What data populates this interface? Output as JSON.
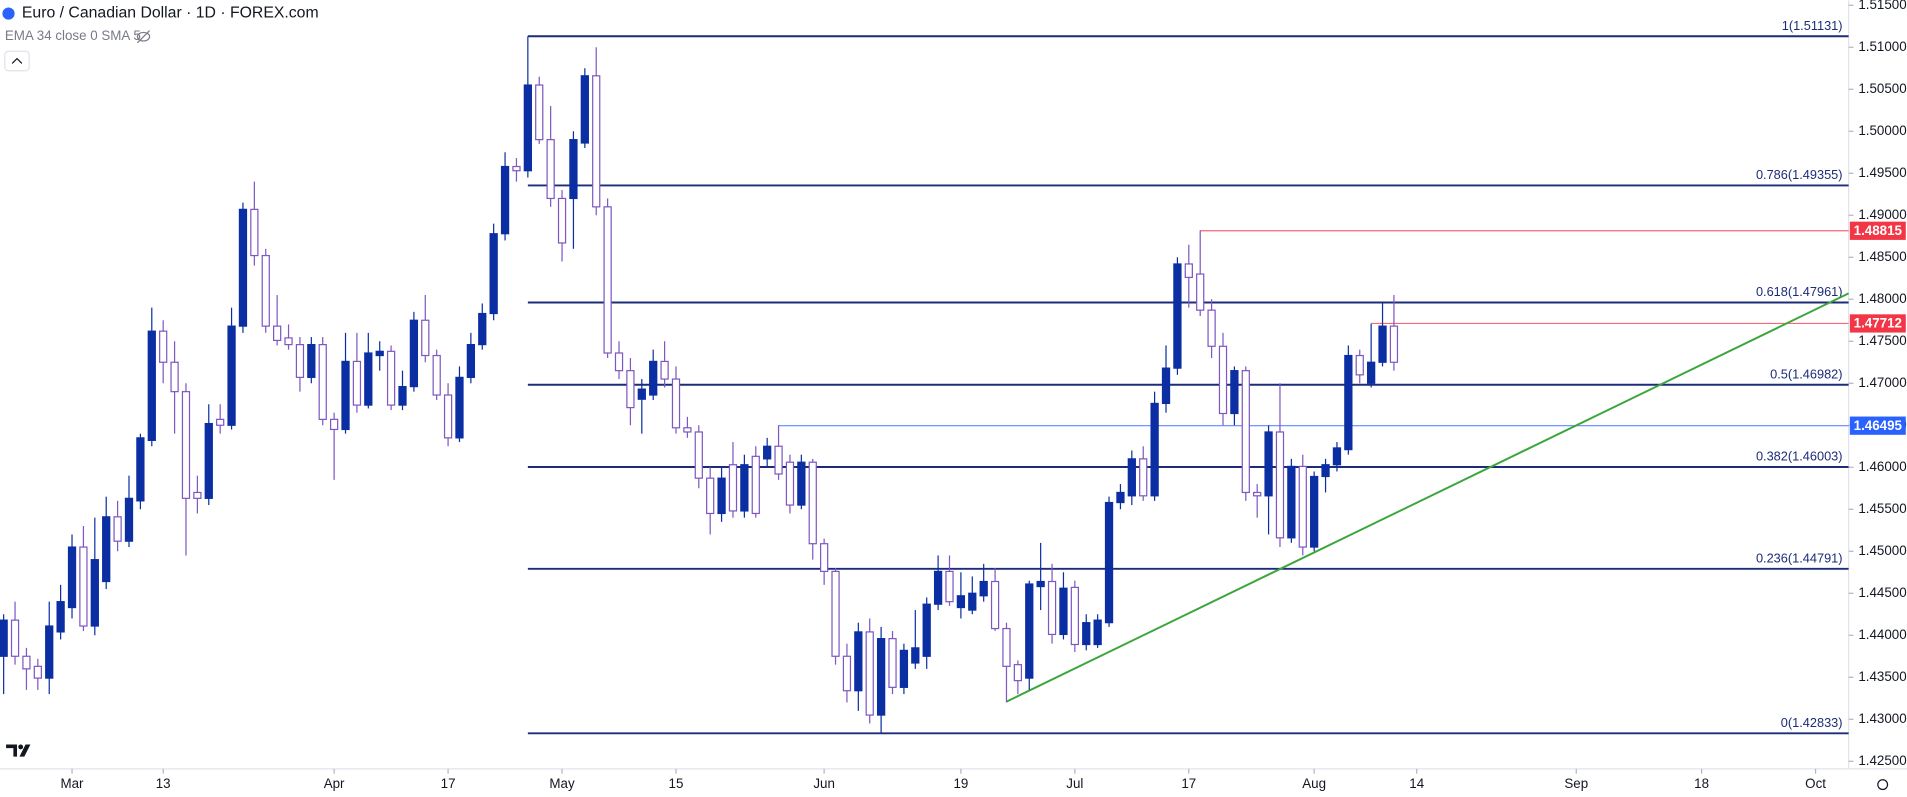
{
  "chart_data": {
    "type": "candlestick",
    "title": "Euro / Canadian Dollar · 1D · FOREX.com",
    "subtitle": "EMA 34 close 0 SMA 5",
    "up_color": "#0b2fa3",
    "down_color": "#ffffff",
    "down_border": "#7e57c2",
    "xlim": [
      -0.32,
      161.9
    ],
    "ylim": [
      1.4241,
      1.5156
    ],
    "xticks": [
      {
        "value": 6,
        "label": "Mar"
      },
      {
        "value": 14,
        "label": "13"
      },
      {
        "value": 29,
        "label": "Apr"
      },
      {
        "value": 39,
        "label": "17"
      },
      {
        "value": 49,
        "label": "May"
      },
      {
        "value": 59,
        "label": "15"
      },
      {
        "value": 72,
        "label": "Jun"
      },
      {
        "value": 84,
        "label": "19"
      },
      {
        "value": 94,
        "label": "Jul"
      },
      {
        "value": 104,
        "label": "17"
      },
      {
        "value": 115,
        "label": "Aug"
      },
      {
        "value": 124,
        "label": "14"
      },
      {
        "value": 138,
        "label": "Sep"
      },
      {
        "value": 149,
        "label": "18"
      },
      {
        "value": 159,
        "label": "Oct"
      }
    ],
    "yticks": [
      {
        "value": 1.425,
        "label": "1.42500"
      },
      {
        "value": 1.43,
        "label": "1.43000"
      },
      {
        "value": 1.435,
        "label": "1.43500"
      },
      {
        "value": 1.44,
        "label": "1.44000"
      },
      {
        "value": 1.445,
        "label": "1.44500"
      },
      {
        "value": 1.45,
        "label": "1.45000"
      },
      {
        "value": 1.455,
        "label": "1.45500"
      },
      {
        "value": 1.46,
        "label": "1.46000"
      },
      {
        "value": 1.465,
        "label": "1.46500"
      },
      {
        "value": 1.47,
        "label": "1.47000"
      },
      {
        "value": 1.475,
        "label": "1.47500"
      },
      {
        "value": 1.48,
        "label": "1.48000"
      },
      {
        "value": 1.485,
        "label": "1.48500"
      },
      {
        "value": 1.49,
        "label": "1.49000"
      },
      {
        "value": 1.495,
        "label": "1.49500"
      },
      {
        "value": 1.5,
        "label": "1.50000"
      },
      {
        "value": 1.505,
        "label": "1.50500"
      },
      {
        "value": 1.51,
        "label": "1.51000"
      },
      {
        "value": 1.515,
        "label": "1.51500"
      }
    ],
    "candles": [
      [
        1.4375,
        1.4425,
        1.433,
        1.4418
      ],
      [
        1.4418,
        1.444,
        1.4365,
        1.4375
      ],
      [
        1.4375,
        1.4385,
        1.4335,
        1.436
      ],
      [
        1.4363,
        1.4372,
        1.4335,
        1.4349
      ],
      [
        1.4349,
        1.444,
        1.433,
        1.4411
      ],
      [
        1.4404,
        1.446,
        1.4395,
        1.444
      ],
      [
        1.4433,
        1.452,
        1.442,
        1.4505
      ],
      [
        1.4505,
        1.453,
        1.4405,
        1.4411
      ],
      [
        1.4411,
        1.454,
        1.44,
        1.449
      ],
      [
        1.4464,
        1.4565,
        1.4455,
        1.4541
      ],
      [
        1.4541,
        1.456,
        1.45,
        1.4512
      ],
      [
        1.4512,
        1.459,
        1.4505,
        1.4563
      ],
      [
        1.456,
        1.464,
        1.455,
        1.4635
      ],
      [
        1.4632,
        1.479,
        1.4625,
        1.4762
      ],
      [
        1.4762,
        1.4775,
        1.47,
        1.4725
      ],
      [
        1.4725,
        1.475,
        1.464,
        1.469
      ],
      [
        1.469,
        1.47,
        1.4495,
        1.4563
      ],
      [
        1.457,
        1.459,
        1.4545,
        1.4563
      ],
      [
        1.4563,
        1.4675,
        1.4555,
        1.4652
      ],
      [
        1.4657,
        1.4675,
        1.464,
        1.465
      ],
      [
        1.465,
        1.479,
        1.4645,
        1.4768
      ],
      [
        1.4768,
        1.4915,
        1.476,
        1.4907
      ],
      [
        1.4907,
        1.494,
        1.484,
        1.4852
      ],
      [
        1.4852,
        1.486,
        1.476,
        1.4768
      ],
      [
        1.4768,
        1.4805,
        1.4745,
        1.4751
      ],
      [
        1.4754,
        1.477,
        1.474,
        1.4746
      ],
      [
        1.4746,
        1.4755,
        1.469,
        1.4707
      ],
      [
        1.4707,
        1.4755,
        1.47,
        1.4746
      ],
      [
        1.4746,
        1.4755,
        1.465,
        1.4657
      ],
      [
        1.4657,
        1.4665,
        1.4585,
        1.4645
      ],
      [
        1.4645,
        1.476,
        1.464,
        1.4726
      ],
      [
        1.4726,
        1.476,
        1.4665,
        1.4674
      ],
      [
        1.4674,
        1.476,
        1.467,
        1.4736
      ],
      [
        1.4733,
        1.475,
        1.4715,
        1.4738
      ],
      [
        1.4738,
        1.4745,
        1.4668,
        1.4674
      ],
      [
        1.4674,
        1.4715,
        1.4668,
        1.4696
      ],
      [
        1.4696,
        1.4785,
        1.469,
        1.4775
      ],
      [
        1.4775,
        1.4805,
        1.4725,
        1.4733
      ],
      [
        1.4733,
        1.474,
        1.468,
        1.4686
      ],
      [
        1.4686,
        1.47,
        1.4625,
        1.4635
      ],
      [
        1.4635,
        1.472,
        1.463,
        1.4707
      ],
      [
        1.4707,
        1.476,
        1.47,
        1.4746
      ],
      [
        1.4746,
        1.4795,
        1.474,
        1.4783
      ],
      [
        1.4783,
        1.489,
        1.4775,
        1.4878
      ],
      [
        1.4878,
        1.4975,
        1.487,
        1.4958
      ],
      [
        1.4958,
        1.4968,
        1.494,
        1.4953
      ],
      [
        1.4953,
        1.5113,
        1.4945,
        1.5055
      ],
      [
        1.5055,
        1.5065,
        1.4985,
        1.499
      ],
      [
        1.499,
        1.503,
        1.491,
        1.492
      ],
      [
        1.492,
        1.493,
        1.4845,
        1.4867
      ],
      [
        1.492,
        1.5,
        1.486,
        1.499
      ],
      [
        1.4986,
        1.5075,
        1.498,
        1.5066
      ],
      [
        1.5066,
        1.51,
        1.49,
        1.491
      ],
      [
        1.491,
        1.492,
        1.473,
        1.4736
      ],
      [
        1.4736,
        1.475,
        1.4705,
        1.4715
      ],
      [
        1.4715,
        1.473,
        1.465,
        1.4671
      ],
      [
        1.4681,
        1.4705,
        1.464,
        1.4693
      ],
      [
        1.4686,
        1.474,
        1.468,
        1.4726
      ],
      [
        1.4726,
        1.475,
        1.4695,
        1.4705
      ],
      [
        1.4705,
        1.472,
        1.464,
        1.4647
      ],
      [
        1.4647,
        1.466,
        1.4635,
        1.4642
      ],
      [
        1.4642,
        1.465,
        1.4575,
        1.4587
      ],
      [
        1.4587,
        1.46,
        1.452,
        1.4545
      ],
      [
        1.4545,
        1.46,
        1.4535,
        1.4587
      ],
      [
        1.4603,
        1.463,
        1.454,
        1.4548
      ],
      [
        1.4548,
        1.4615,
        1.454,
        1.4603
      ],
      [
        1.4613,
        1.4625,
        1.454,
        1.4545
      ],
      [
        1.461,
        1.4635,
        1.46,
        1.4625
      ],
      [
        1.4625,
        1.465,
        1.4585,
        1.4592
      ],
      [
        1.4606,
        1.4615,
        1.4545,
        1.4555
      ],
      [
        1.4555,
        1.4615,
        1.455,
        1.4606
      ],
      [
        1.4606,
        1.461,
        1.449,
        1.4509
      ],
      [
        1.4509,
        1.4515,
        1.446,
        1.4476
      ],
      [
        1.4476,
        1.448,
        1.4365,
        1.4375
      ],
      [
        1.4375,
        1.439,
        1.432,
        1.4334
      ],
      [
        1.4334,
        1.4415,
        1.431,
        1.4404
      ],
      [
        1.4404,
        1.442,
        1.4295,
        1.4305
      ],
      [
        1.4305,
        1.441,
        1.4283,
        1.4396
      ],
      [
        1.4396,
        1.4405,
        1.433,
        1.4338
      ],
      [
        1.4338,
        1.439,
        1.433,
        1.4382
      ],
      [
        1.4367,
        1.443,
        1.436,
        1.4385
      ],
      [
        1.4375,
        1.4445,
        1.436,
        1.4437
      ],
      [
        1.4437,
        1.4495,
        1.443,
        1.4476
      ],
      [
        1.4476,
        1.4495,
        1.4435,
        1.444
      ],
      [
        1.4433,
        1.4475,
        1.442,
        1.4447
      ],
      [
        1.443,
        1.447,
        1.4425,
        1.445
      ],
      [
        1.4447,
        1.4485,
        1.444,
        1.4464
      ],
      [
        1.4464,
        1.448,
        1.4405,
        1.4408
      ],
      [
        1.4408,
        1.4415,
        1.432,
        1.4363
      ],
      [
        1.4365,
        1.437,
        1.433,
        1.4346
      ],
      [
        1.4349,
        1.4465,
        1.4335,
        1.4461
      ],
      [
        1.4458,
        1.451,
        1.443,
        1.4464
      ],
      [
        1.4464,
        1.4485,
        1.439,
        1.4401
      ],
      [
        1.4401,
        1.4475,
        1.4395,
        1.4456
      ],
      [
        1.4457,
        1.4465,
        1.438,
        1.4389
      ],
      [
        1.4389,
        1.4425,
        1.4382,
        1.4415
      ],
      [
        1.4389,
        1.4425,
        1.4385,
        1.4418
      ],
      [
        1.4415,
        1.4565,
        1.441,
        1.4558
      ],
      [
        1.4558,
        1.458,
        1.455,
        1.457
      ],
      [
        1.4566,
        1.462,
        1.4555,
        1.461
      ],
      [
        1.461,
        1.4625,
        1.456,
        1.4566
      ],
      [
        1.4566,
        1.469,
        1.456,
        1.4676
      ],
      [
        1.4676,
        1.4745,
        1.4665,
        1.4718
      ],
      [
        1.4718,
        1.485,
        1.471,
        1.4842
      ],
      [
        1.4842,
        1.4865,
        1.479,
        1.4826
      ],
      [
        1.483,
        1.4882,
        1.478,
        1.4787
      ],
      [
        1.4787,
        1.48,
        1.473,
        1.4744
      ],
      [
        1.4744,
        1.476,
        1.465,
        1.4664
      ],
      [
        1.4664,
        1.472,
        1.465,
        1.4715
      ],
      [
        1.4715,
        1.472,
        1.456,
        1.457
      ],
      [
        1.457,
        1.458,
        1.454,
        1.4566
      ],
      [
        1.4566,
        1.465,
        1.452,
        1.4642
      ],
      [
        1.4642,
        1.47,
        1.4505,
        1.4516
      ],
      [
        1.4516,
        1.461,
        1.451,
        1.4601
      ],
      [
        1.4601,
        1.4615,
        1.4495,
        1.4505
      ],
      [
        1.4505,
        1.4595,
        1.45,
        1.4589
      ],
      [
        1.4589,
        1.461,
        1.457,
        1.4603
      ],
      [
        1.4603,
        1.463,
        1.4595,
        1.4623
      ],
      [
        1.4621,
        1.4745,
        1.4615,
        1.4733
      ],
      [
        1.4733,
        1.474,
        1.47,
        1.471
      ],
      [
        1.47,
        1.4771,
        1.4695,
        1.4725
      ],
      [
        1.4725,
        1.4795,
        1.472,
        1.4768
      ],
      [
        1.4768,
        1.4805,
        1.4715,
        1.4725
      ]
    ],
    "fib": {
      "color": "#1c2c78",
      "x_start": 46,
      "levels": [
        {
          "price": 1.51131,
          "label": "1(1.51131)"
        },
        {
          "price": 1.49355,
          "label": "0.786(1.49355)"
        },
        {
          "price": 1.47961,
          "label": "0.618(1.47961)"
        },
        {
          "price": 1.46982,
          "label": "0.5(1.46982)"
        },
        {
          "price": 1.46003,
          "label": "0.382(1.46003)"
        },
        {
          "price": 1.44791,
          "label": "0.236(1.44791)"
        },
        {
          "price": 1.42833,
          "label": "0(1.42833)"
        }
      ]
    },
    "hlines": [
      {
        "price": 1.48815,
        "x_start": 105,
        "color": "#f23645"
      },
      {
        "price": 1.47712,
        "x_start": 120,
        "color": "#f23645"
      },
      {
        "price": 1.46495,
        "x_start": 68,
        "color": "#2962ff"
      }
    ],
    "trendline": {
      "color": "#3ca53c",
      "x": [
        88,
        161.9
      ],
      "y": [
        1.4321,
        1.4807
      ]
    }
  }
}
